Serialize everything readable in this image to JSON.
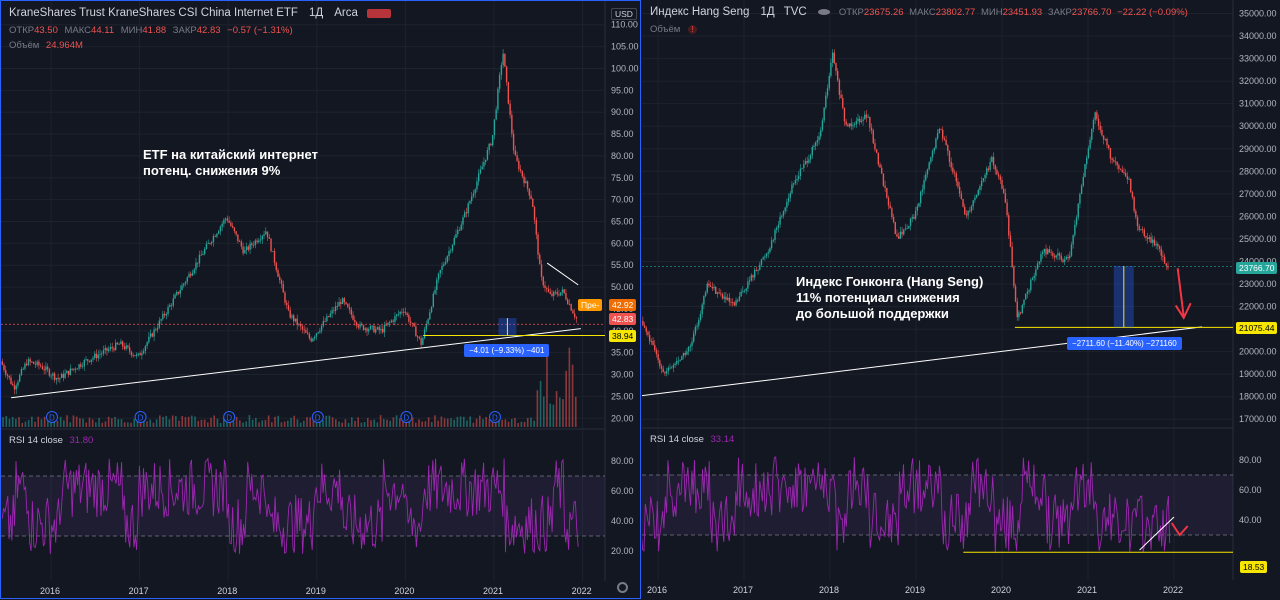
{
  "left": {
    "title": "KraneShares Trust KraneShares CSI China Internet ETF",
    "interval": "1Д",
    "exchange": "Arca",
    "ohlc": {
      "o_label": "ОТКР",
      "o": "43.50",
      "h_label": "МАКС",
      "h": "44.11",
      "l_label": "МИН",
      "l": "41.88",
      "c_label": "ЗАКР",
      "c": "42.83",
      "chg": "−0.57 (−1.31%)"
    },
    "volume_label": "Объём",
    "volume_value": "24.964M",
    "currency": "USD",
    "annotation": [
      "ETF на китайский интернет",
      "потенц. снижения 9%"
    ],
    "price_tags": {
      "pre": "Пре-",
      "pre_value": "42.92",
      "close": "42.83",
      "support": "38.94"
    },
    "measure": "−4.01 (−9.33%) −401",
    "rsi_label": "RSI 14 close",
    "rsi_value": "31.80",
    "dividend_marker": "D",
    "colors": {
      "up": "#26a69a",
      "down": "#ef5350",
      "rsi": "#9c27b0",
      "support": "#f7e600"
    }
  },
  "right": {
    "title": "Индекс Hang Seng",
    "interval": "1Д",
    "exchange": "TVC",
    "ohlc": {
      "o_label": "ОТКР",
      "o": "23675.26",
      "h_label": "МАКС",
      "h": "23802.77",
      "l_label": "МИН",
      "l": "23451.93",
      "c_label": "ЗАКР",
      "c": "23766.70",
      "chg": "−22.22 (−0.09%)"
    },
    "volume_label": "Объём",
    "annotation": [
      "Индекс Гонконга (Hang Seng)",
      "11% потенциал снижения",
      "до большой поддержки"
    ],
    "price_tags": {
      "last": "23766.70",
      "support": "21075.44"
    },
    "measure": "−2711.60 (−11.40%) −271160",
    "rsi_label": "RSI 14 close",
    "rsi_value": "33.14",
    "rsi_min_tag": "18.53"
  },
  "chart_data": [
    {
      "type": "candlestick",
      "title": "KraneShares Trust KraneShares CSI China Internet ETF",
      "x_ticks": [
        "2016",
        "2017",
        "2018",
        "2019",
        "2020",
        "2021",
        "2022"
      ],
      "y_ticks": [
        "20.00",
        "25.00",
        "30.00",
        "35.00",
        "40.00",
        "45.00",
        "50.00",
        "55.00",
        "60.00",
        "65.00",
        "70.00",
        "75.00",
        "80.00",
        "85.00",
        "90.00",
        "95.00",
        "100.00",
        "105.00",
        "110.00"
      ],
      "ylim": [
        18,
        112
      ],
      "path": [
        [
          2015.45,
          33
        ],
        [
          2015.6,
          27
        ],
        [
          2015.75,
          33
        ],
        [
          2015.9,
          32
        ],
        [
          2016.1,
          29
        ],
        [
          2016.4,
          33
        ],
        [
          2016.8,
          37
        ],
        [
          2017.0,
          34
        ],
        [
          2017.4,
          47
        ],
        [
          2017.8,
          60
        ],
        [
          2018.0,
          66
        ],
        [
          2018.2,
          58
        ],
        [
          2018.45,
          63
        ],
        [
          2018.7,
          44
        ],
        [
          2018.95,
          38
        ],
        [
          2019.3,
          47
        ],
        [
          2019.5,
          41
        ],
        [
          2019.75,
          40
        ],
        [
          2020.0,
          45
        ],
        [
          2020.2,
          37
        ],
        [
          2020.4,
          53
        ],
        [
          2020.7,
          67
        ],
        [
          2021.0,
          84
        ],
        [
          2021.12,
          104
        ],
        [
          2021.25,
          80
        ],
        [
          2021.45,
          70
        ],
        [
          2021.55,
          52
        ],
        [
          2021.65,
          48
        ],
        [
          2021.8,
          49
        ],
        [
          2021.95,
          42.83
        ]
      ],
      "rsi_ticks": [
        "20.00",
        "40.00",
        "60.00",
        "80.00"
      ],
      "rsi_levels": [
        30,
        70
      ],
      "grid": true
    },
    {
      "type": "candlestick",
      "title": "Индекс Hang Seng",
      "x_ticks": [
        "2016",
        "2017",
        "2018",
        "2019",
        "2020",
        "2021",
        "2022"
      ],
      "y_ticks": [
        "17000.00",
        "18000.00",
        "19000.00",
        "20000.00",
        "21000.00",
        "22000.00",
        "23000.00",
        "24000.00",
        "25000.00",
        "26000.00",
        "27000.00",
        "28000.00",
        "29000.00",
        "30000.00",
        "31000.00",
        "32000.00",
        "33000.00",
        "34000.00",
        "35000.00"
      ],
      "ylim": [
        16700,
        35200
      ],
      "path": [
        [
          2015.45,
          23000
        ],
        [
          2015.6,
          21500
        ],
        [
          2015.75,
          22000
        ],
        [
          2016.1,
          19000
        ],
        [
          2016.4,
          20200
        ],
        [
          2016.6,
          23000
        ],
        [
          2016.9,
          22000
        ],
        [
          2017.3,
          24500
        ],
        [
          2017.6,
          27500
        ],
        [
          2017.9,
          29500
        ],
        [
          2018.05,
          33200
        ],
        [
          2018.2,
          30000
        ],
        [
          2018.45,
          30500
        ],
        [
          2018.8,
          25000
        ],
        [
          2019.0,
          26000
        ],
        [
          2019.3,
          30000
        ],
        [
          2019.6,
          26000
        ],
        [
          2019.9,
          28500
        ],
        [
          2020.05,
          27000
        ],
        [
          2020.2,
          21500
        ],
        [
          2020.5,
          24500
        ],
        [
          2020.8,
          24000
        ],
        [
          2020.95,
          27500
        ],
        [
          2021.1,
          30500
        ],
        [
          2021.3,
          28500
        ],
        [
          2021.5,
          27500
        ],
        [
          2021.6,
          25500
        ],
        [
          2021.8,
          24800
        ],
        [
          2021.95,
          23766.7
        ]
      ],
      "rsi_ticks": [
        "40.00",
        "60.00",
        "80.00"
      ],
      "rsi_levels": [
        30,
        70
      ],
      "grid": true
    }
  ]
}
